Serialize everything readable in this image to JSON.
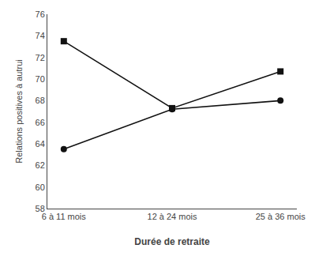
{
  "chart_data": {
    "type": "line",
    "xlabel": "Durée de retraite",
    "ylabel": "Relations positives à autrui",
    "categories": [
      "6 à 11 mois",
      "12 à 24 mois",
      "25 à 36 mois"
    ],
    "series": [
      {
        "color": "#111111",
        "marker": "square",
        "values": [
          73.5,
          67.3,
          70.7
        ]
      },
      {
        "color": "#111111",
        "marker": "circle",
        "values": [
          63.5,
          67.2,
          68.0
        ]
      }
    ],
    "ylim": [
      58,
      76
    ],
    "yticks": [
      58,
      60,
      62,
      64,
      66,
      68,
      70,
      72,
      74,
      76
    ],
    "grid": false
  }
}
